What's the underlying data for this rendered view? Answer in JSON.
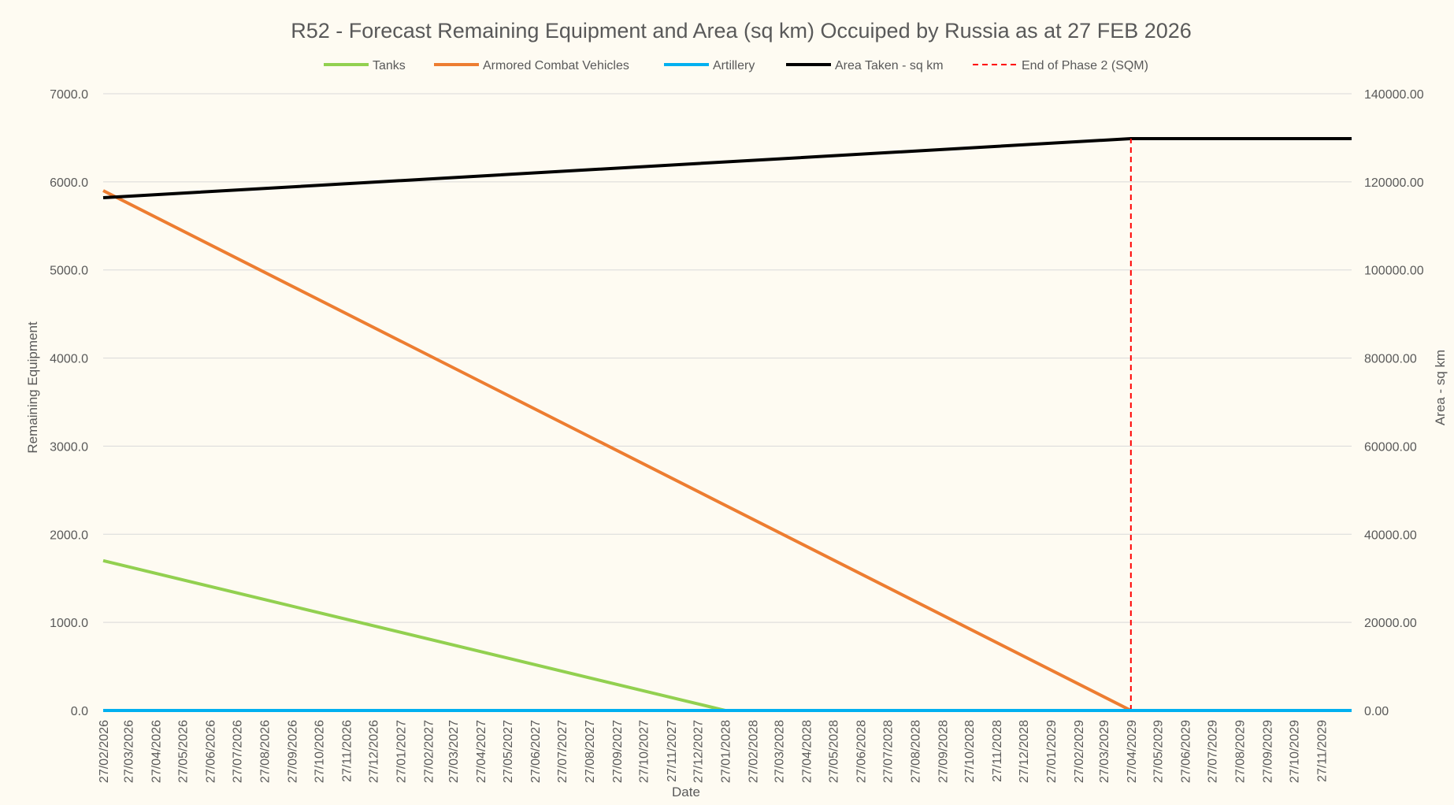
{
  "chart_data": {
    "type": "line",
    "title": "R52 - Forecast Remaining Equipment and Area (sq km) Occuiped by Russia as at 27 FEB 2026",
    "xlabel": "Date",
    "ylabel": "Remaining Equipment",
    "y2label": "Area - sq km",
    "ylim": [
      0,
      7000
    ],
    "y2lim": [
      0,
      140000
    ],
    "y_ticks": [
      "0.0",
      "1000.0",
      "2000.0",
      "3000.0",
      "4000.0",
      "5000.0",
      "6000.0",
      "7000.0"
    ],
    "y2_ticks": [
      "0.00",
      "20000.00",
      "40000.00",
      "60000.00",
      "80000.00",
      "100000.00",
      "120000.00",
      "140000.00"
    ],
    "grid": true,
    "legend_position": "top",
    "x_categories": [
      "27/02/2026",
      "27/03/2026",
      "27/04/2026",
      "27/05/2026",
      "27/06/2026",
      "27/07/2026",
      "27/08/2026",
      "27/09/2026",
      "27/10/2026",
      "27/11/2026",
      "27/12/2026",
      "27/01/2027",
      "27/02/2027",
      "27/03/2027",
      "27/04/2027",
      "27/05/2027",
      "27/06/2027",
      "27/07/2027",
      "27/08/2027",
      "27/09/2027",
      "27/10/2027",
      "27/11/2027",
      "27/12/2027",
      "27/01/2028",
      "27/02/2028",
      "27/03/2028",
      "27/04/2028",
      "27/05/2028",
      "27/06/2028",
      "27/07/2028",
      "27/08/2028",
      "27/09/2028",
      "27/10/2028",
      "27/11/2028",
      "27/12/2028",
      "27/01/2029",
      "27/02/2029",
      "27/03/2029",
      "27/04/2029",
      "27/05/2029",
      "27/06/2029",
      "27/07/2029",
      "27/08/2029",
      "27/09/2029",
      "27/10/2029",
      "27/11/2029"
    ],
    "series": [
      {
        "name": "Tanks",
        "axis": "left",
        "color": "#92d050",
        "style": "solid",
        "points": [
          [
            "27/02/2026",
            1700
          ],
          [
            "27/01/2028",
            0
          ],
          [
            "31/12/2029",
            0
          ]
        ]
      },
      {
        "name": "Armored Combat Vehicles",
        "axis": "left",
        "color": "#ed7d31",
        "style": "solid",
        "points": [
          [
            "27/02/2026",
            5900
          ],
          [
            "27/04/2029",
            0
          ],
          [
            "31/12/2029",
            0
          ]
        ]
      },
      {
        "name": "Artillery",
        "axis": "left",
        "color": "#00b0f0",
        "style": "solid",
        "points": [
          [
            "27/02/2026",
            0
          ],
          [
            "31/12/2029",
            0
          ]
        ]
      },
      {
        "name": "Area Taken - sq km",
        "axis": "right",
        "color": "#000000",
        "style": "solid",
        "points": [
          [
            "27/02/2026",
            116400
          ],
          [
            "27/04/2029",
            129800
          ],
          [
            "31/12/2029",
            129800
          ]
        ]
      },
      {
        "name": "End of Phase 2 (SQM)",
        "axis": "right",
        "color": "#ff0000",
        "style": "dashed",
        "points": [
          [
            "27/04/2029",
            0
          ],
          [
            "27/04/2029",
            129800
          ]
        ]
      }
    ]
  }
}
